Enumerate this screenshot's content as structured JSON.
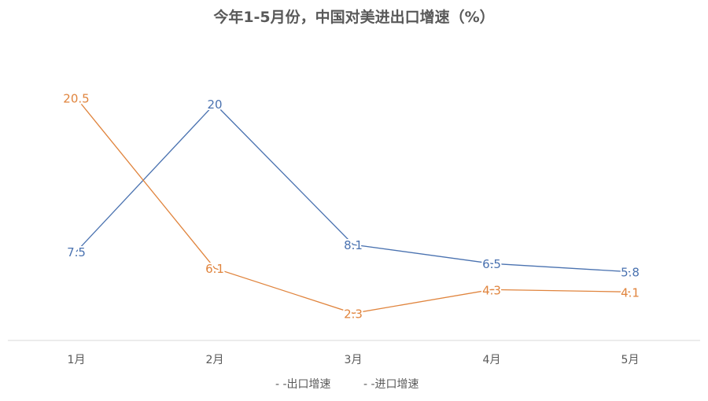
{
  "chart_data": {
    "type": "line",
    "title": "今年1-5月份，中国对美进出口增速（%）",
    "categories": [
      "1月",
      "2月",
      "3月",
      "4月",
      "5月"
    ],
    "series": [
      {
        "name": "出口增速",
        "legend_label": "- -出口增速",
        "color": "#4a72b0",
        "values": [
          7.5,
          20,
          8.1,
          6.5,
          5.8
        ],
        "labels": [
          "7.5",
          "20",
          "8.1",
          "6.5",
          "5.8"
        ]
      },
      {
        "name": "进口增速",
        "legend_label": "- -进口增速",
        "color": "#e0843d",
        "values": [
          20.5,
          6.1,
          2.3,
          4.3,
          4.1
        ],
        "labels": [
          "20.5",
          "6.1",
          "2.3",
          "4.3",
          "4.1"
        ]
      }
    ],
    "ylim": [
      0,
      22
    ],
    "grid": false,
    "legend_position": "bottom"
  }
}
